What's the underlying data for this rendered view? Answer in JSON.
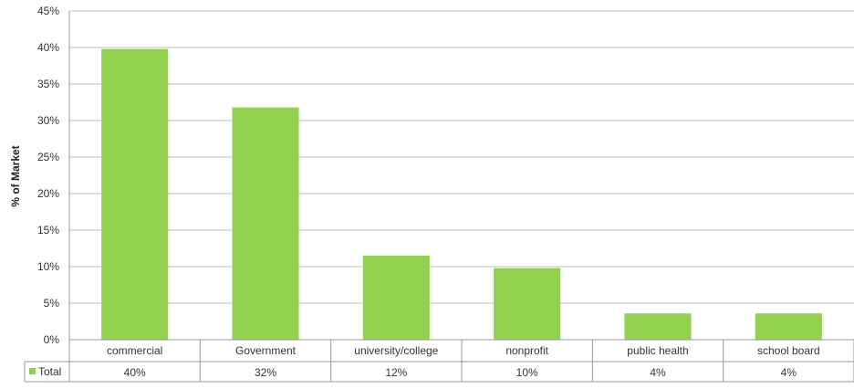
{
  "chart_data": {
    "type": "bar",
    "title": "",
    "xlabel": "",
    "ylabel": "% of Market",
    "ylim": [
      0,
      45
    ],
    "y_ticks": [
      "0%",
      "5%",
      "10%",
      "15%",
      "20%",
      "25%",
      "30%",
      "35%",
      "40%",
      "45%"
    ],
    "grid": true,
    "categories": [
      "commercial",
      "Government",
      "university/college",
      "nonprofit",
      "public health",
      "school board"
    ],
    "series": [
      {
        "name": "Total",
        "values": [
          39.8,
          31.8,
          11.5,
          9.8,
          3.6,
          3.6
        ],
        "table_labels": [
          "40%",
          "32%",
          "12%",
          "10%",
          "4%",
          "4%"
        ]
      }
    ],
    "data_table": true,
    "bar_color": "#92d050"
  }
}
